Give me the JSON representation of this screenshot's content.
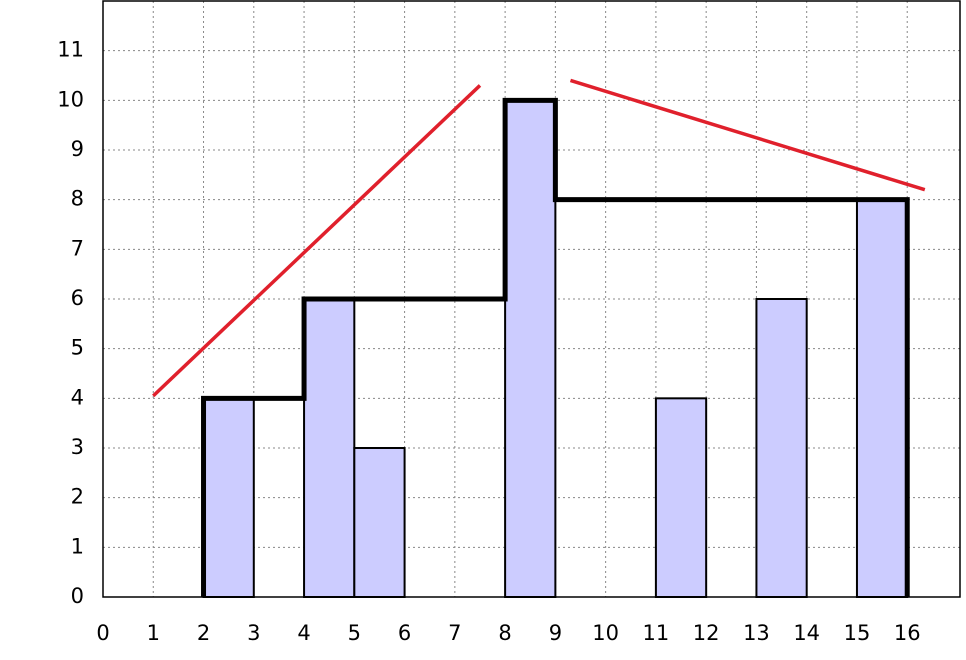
{
  "chart_data": {
    "type": "bar",
    "xlim": [
      0,
      17.05
    ],
    "ylim": [
      0,
      12
    ],
    "xticks": [
      0,
      1,
      2,
      3,
      4,
      5,
      6,
      7,
      8,
      9,
      10,
      11,
      12,
      13,
      14,
      15,
      16
    ],
    "yticks": [
      0,
      1,
      2,
      3,
      4,
      5,
      6,
      7,
      8,
      9,
      10,
      11
    ],
    "grid": true,
    "bars": {
      "x0": [
        2,
        4,
        5,
        8,
        11,
        13,
        15
      ],
      "x1": [
        3,
        5,
        6,
        9,
        12,
        14,
        16
      ],
      "values": [
        4,
        6,
        3,
        10,
        4,
        6,
        8
      ],
      "color": "#ccccff"
    },
    "skyline": {
      "x": [
        2,
        2,
        4,
        4,
        8,
        8,
        9,
        9,
        16,
        16
      ],
      "y": [
        0,
        4,
        4,
        6,
        6,
        10,
        10,
        8,
        8,
        0
      ],
      "color": "#000000"
    },
    "trend_lines": [
      {
        "x": [
          1,
          7.5
        ],
        "y": [
          4.05,
          10.3
        ],
        "color": "#e0202c"
      },
      {
        "x": [
          9.3,
          16.35
        ],
        "y": [
          10.4,
          8.2
        ],
        "color": "#e0202c"
      }
    ]
  }
}
